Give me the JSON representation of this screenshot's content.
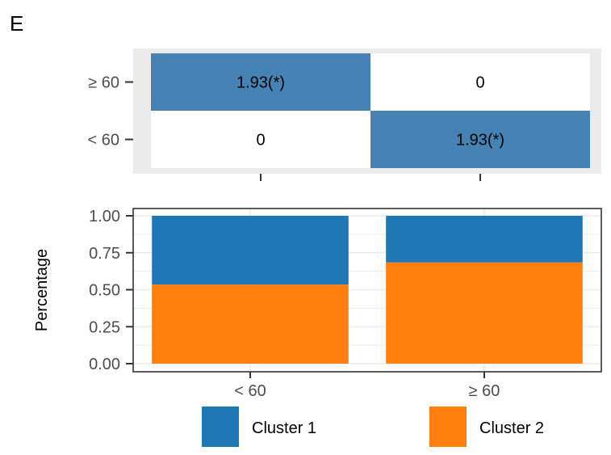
{
  "panel_label": "E",
  "colors": {
    "heat_fill": "#4682B4",
    "heat_empty": "#FFFFFF",
    "heat_panel_bg": "#EBEBEB",
    "cluster1": "#1F77B4",
    "cluster2": "#FF7F0E",
    "gridline": "#EBEBEB",
    "axis": "#333333"
  },
  "chart_data": [
    {
      "type": "heatmap",
      "rows": [
        "≥ 60",
        "< 60"
      ],
      "columns": [
        "< 60",
        "≥ 60"
      ],
      "cells": [
        [
          {
            "label": "1.93(*)",
            "value": 1.93,
            "filled": true
          },
          {
            "label": "0",
            "value": 0,
            "filled": false
          }
        ],
        [
          {
            "label": "0",
            "value": 0,
            "filled": false
          },
          {
            "label": "1.93(*)",
            "value": 1.93,
            "filled": true
          }
        ]
      ]
    },
    {
      "type": "bar",
      "stacked": true,
      "categories": [
        "< 60",
        "≥ 60"
      ],
      "series": [
        {
          "name": "Cluster 2",
          "values": [
            0.535,
            0.685
          ]
        },
        {
          "name": "Cluster 1",
          "values": [
            0.465,
            0.315
          ]
        }
      ],
      "ylabel": "Percentage",
      "xlabel": "",
      "ylim": [
        0,
        1
      ],
      "yticks": [
        "0.00",
        "0.25",
        "0.50",
        "0.75",
        "1.00"
      ],
      "grid": true,
      "legend": {
        "position": "bottom",
        "entries": [
          "Cluster 1",
          "Cluster 2"
        ]
      }
    }
  ]
}
